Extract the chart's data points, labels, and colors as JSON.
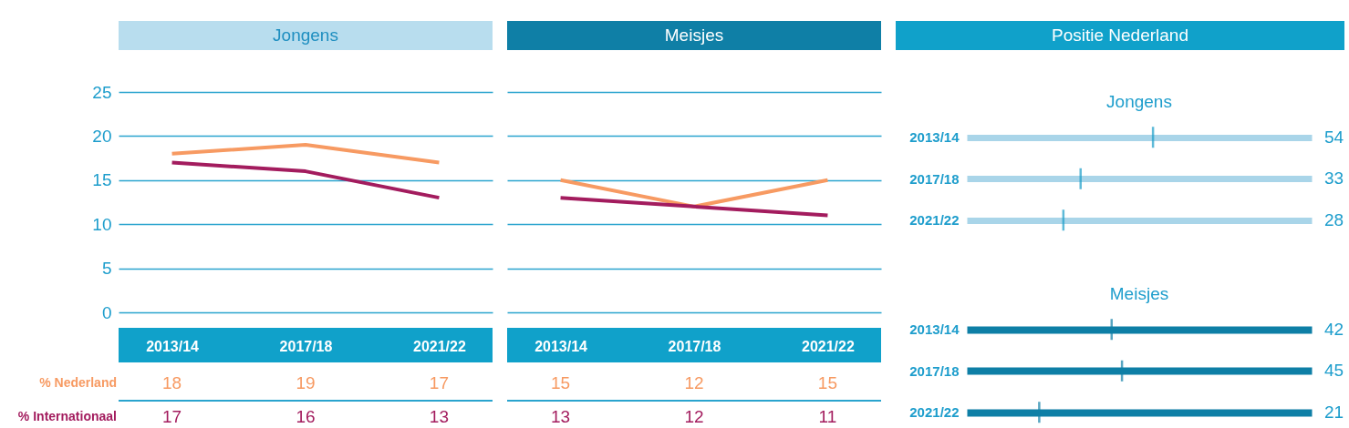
{
  "chart_data": [
    {
      "type": "line",
      "title": "Jongens",
      "categories": [
        "2013/14",
        "2017/18",
        "2021/22"
      ],
      "series": [
        {
          "name": "% Nederland",
          "color": "#f79a62",
          "values": [
            18,
            19,
            17
          ]
        },
        {
          "name": "% Internationaal",
          "color": "#a31c5e",
          "values": [
            17,
            16,
            13
          ]
        }
      ],
      "ylim": [
        0,
        25
      ],
      "yticks": [
        0,
        5,
        10,
        15,
        20,
        25
      ],
      "grid": "y",
      "data_labels": true
    },
    {
      "type": "line",
      "title": "Meisjes",
      "categories": [
        "2013/14",
        "2017/18",
        "2021/22"
      ],
      "series": [
        {
          "color": "#f79a62",
          "values": [
            15,
            12,
            15
          ]
        },
        {
          "color": "#a31c5e",
          "values": [
            13,
            12,
            11
          ]
        }
      ],
      "ylim": [
        0,
        25
      ],
      "yticks": [
        0,
        5,
        10,
        15,
        20,
        25
      ],
      "grid": "y",
      "data_labels": true,
      "tick_labels": "x"
    },
    {
      "type": "other",
      "title": "Positie Nederland",
      "categories": [
        "2013/14",
        "2017/18",
        "2021/22"
      ],
      "series": [
        {
          "name": "Jongens",
          "color": "#1a9dc8",
          "values": [
            54,
            33,
            28
          ]
        },
        {
          "name": "Meisjes",
          "color": "#0e7fa6",
          "values": [
            42,
            45,
            21
          ]
        }
      ],
      "data_labels": true
    }
  ]
}
